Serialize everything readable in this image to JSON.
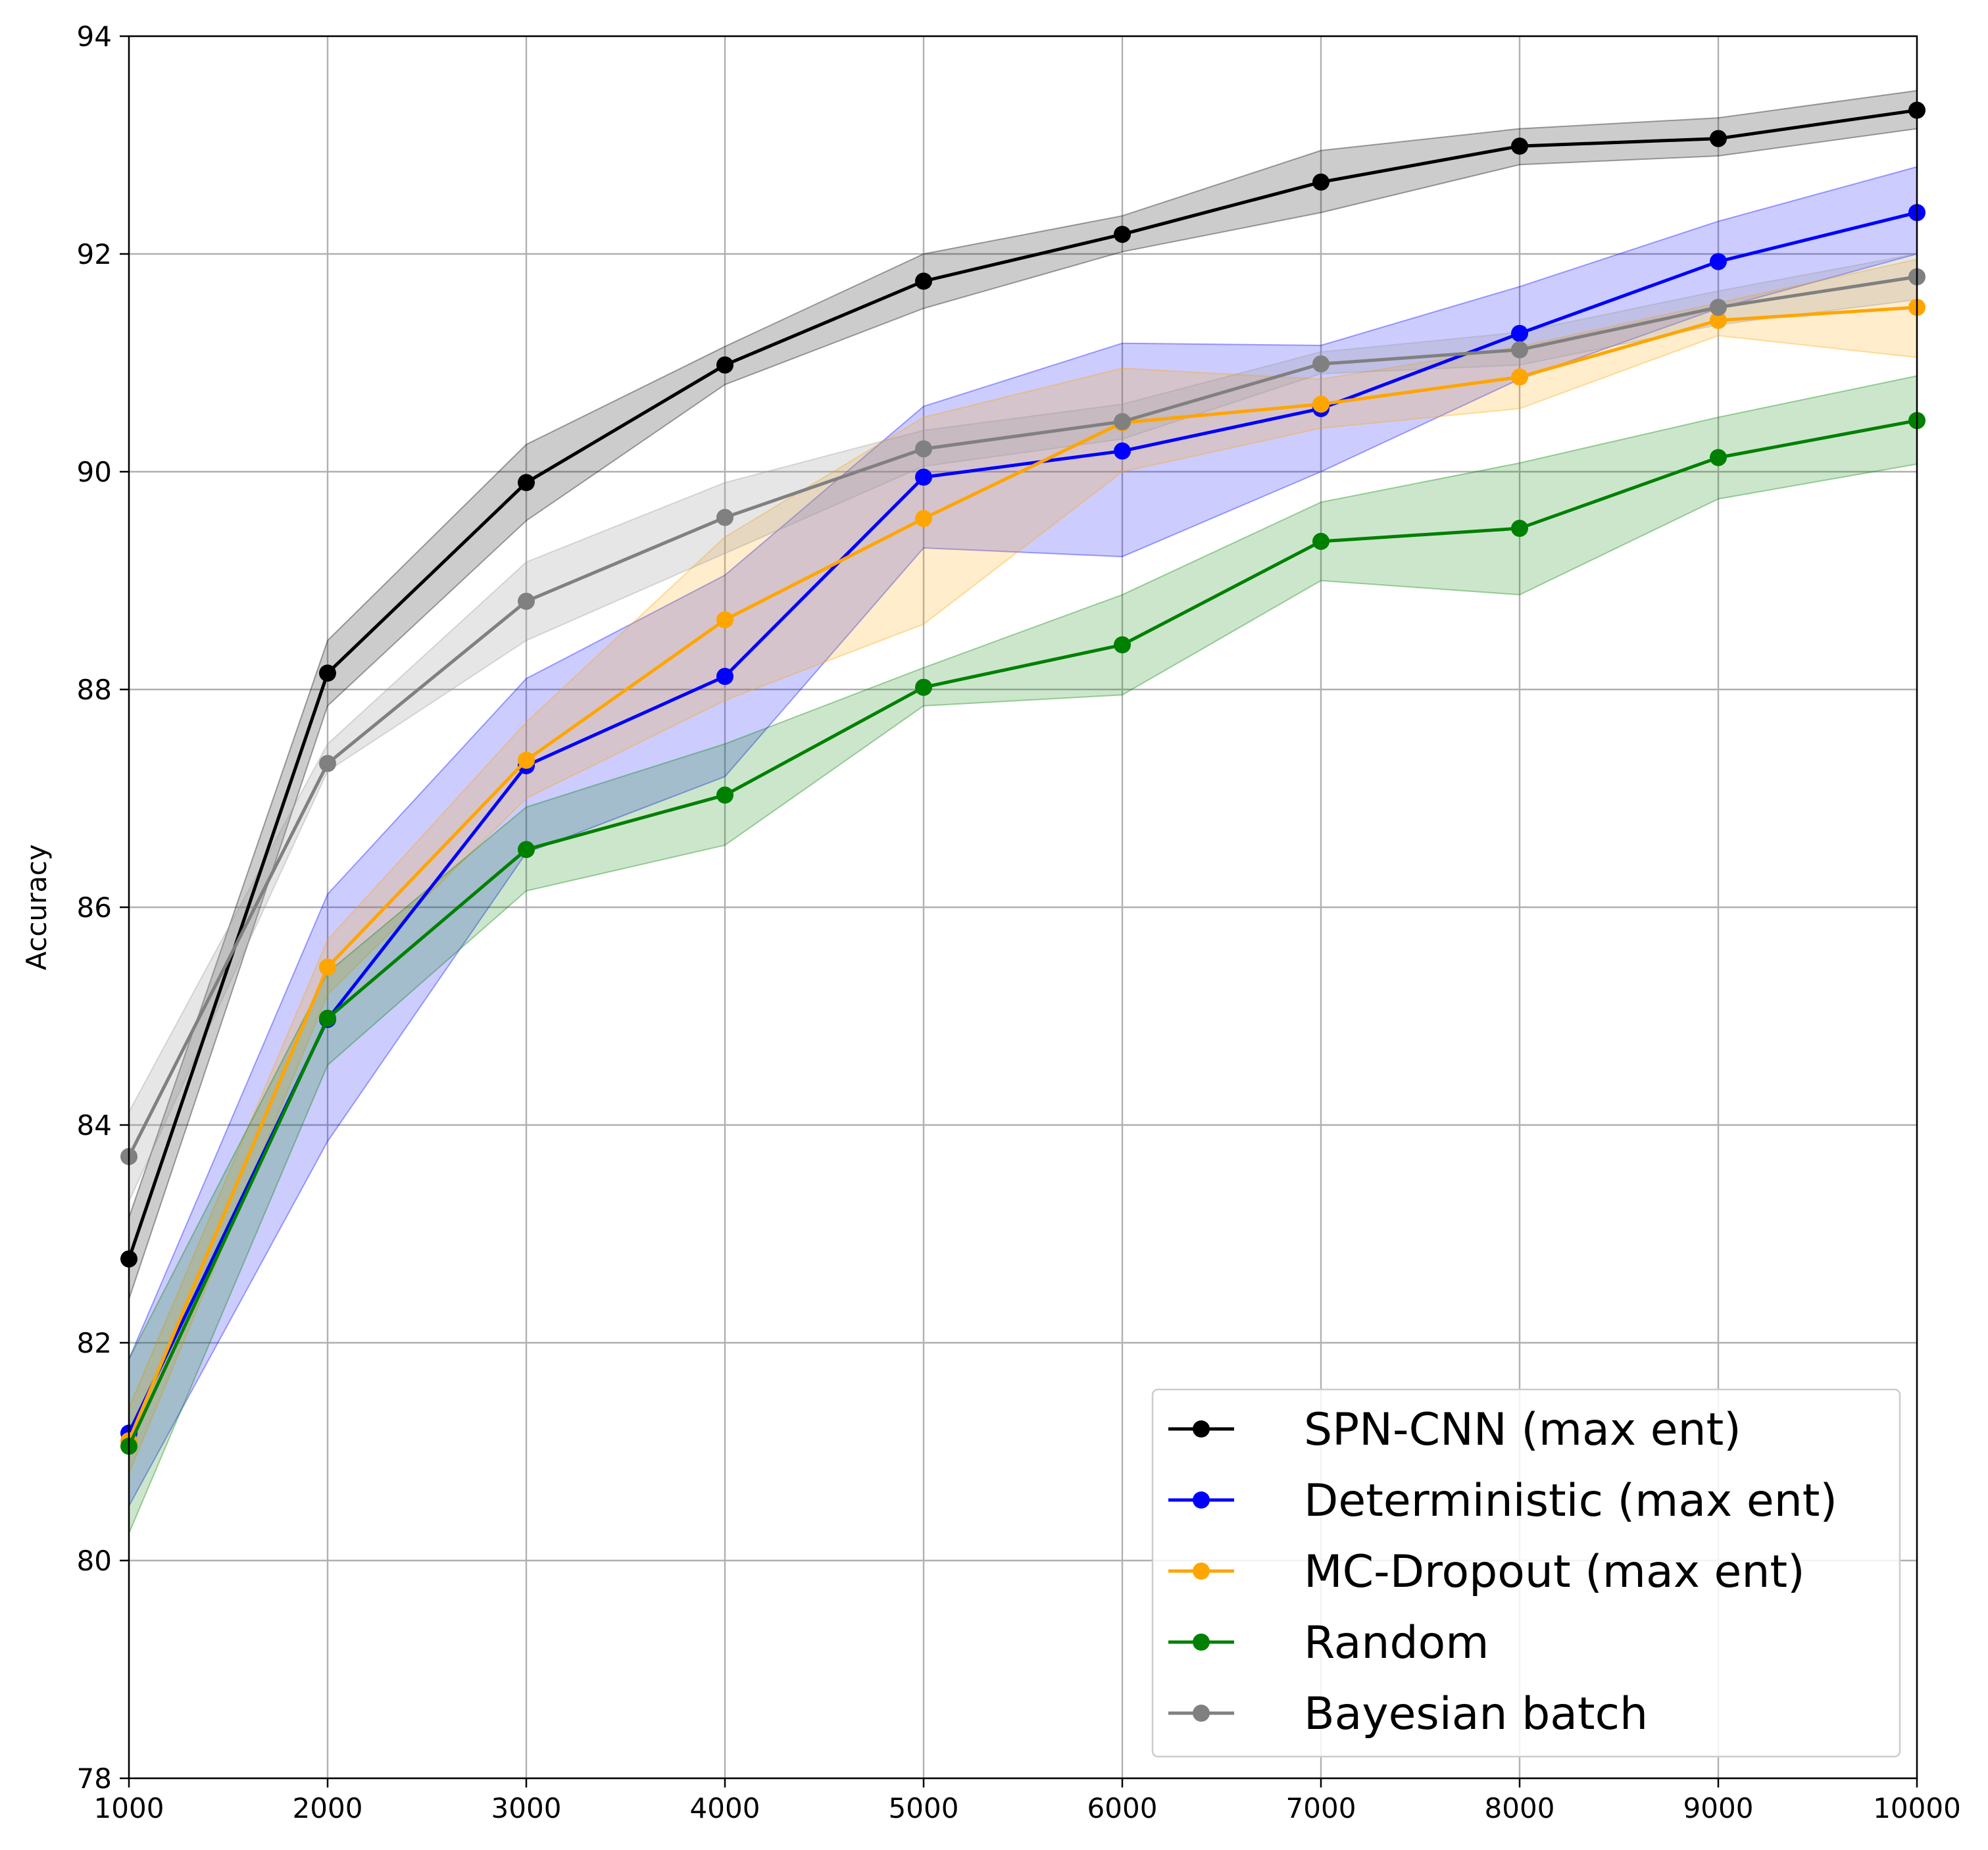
{
  "chart_data": {
    "type": "line",
    "title": "",
    "xlabel": "",
    "ylabel": "Accuracy",
    "xlim": [
      1000,
      10000
    ],
    "ylim": [
      78,
      94
    ],
    "xticks": [
      1000,
      2000,
      3000,
      4000,
      5000,
      6000,
      7000,
      8000,
      9000,
      10000
    ],
    "yticks": [
      78,
      80,
      82,
      84,
      86,
      88,
      90,
      92,
      94
    ],
    "grid": true,
    "legend_position": "bottom-right",
    "x": [
      1000,
      2000,
      3000,
      4000,
      5000,
      6000,
      7000,
      8000,
      9000,
      10000
    ],
    "series": [
      {
        "name": "SPN-CNN (max ent)",
        "color": "#000000",
        "band_color": "#000000",
        "values": [
          82.77,
          88.15,
          89.9,
          90.98,
          91.75,
          92.18,
          92.66,
          92.99,
          93.06,
          93.32
        ],
        "band_lower": [
          82.4,
          87.85,
          89.55,
          90.8,
          91.5,
          92.02,
          92.38,
          92.82,
          92.9,
          93.15
        ],
        "band_upper": [
          83.15,
          88.45,
          90.25,
          91.15,
          92.0,
          92.35,
          92.95,
          93.15,
          93.25,
          93.5
        ]
      },
      {
        "name": "Deterministic (max ent)",
        "color": "#0000ff",
        "band_color": "#0000ff",
        "values": [
          81.17,
          84.97,
          87.3,
          88.12,
          89.95,
          90.19,
          90.58,
          91.27,
          91.93,
          92.38
        ],
        "band_lower": [
          80.5,
          83.85,
          86.5,
          87.2,
          89.3,
          89.22,
          90.0,
          90.85,
          91.5,
          92.0
        ],
        "band_upper": [
          81.85,
          86.12,
          88.1,
          89.05,
          90.6,
          91.18,
          91.16,
          91.7,
          92.3,
          92.8
        ]
      },
      {
        "name": "MC-Dropout (max ent)",
        "color": "#ffa500",
        "band_color": "#ffa500",
        "values": [
          81.1,
          85.45,
          87.35,
          88.64,
          89.57,
          90.45,
          90.62,
          90.87,
          91.39,
          91.51
        ],
        "band_lower": [
          80.8,
          85.2,
          87.0,
          87.9,
          88.6,
          90.0,
          90.4,
          90.58,
          91.25,
          91.05
        ],
        "band_upper": [
          81.4,
          85.7,
          87.7,
          89.4,
          90.5,
          90.95,
          90.85,
          91.15,
          91.55,
          91.95
        ]
      },
      {
        "name": "Random",
        "color": "#008000",
        "band_color": "#008000",
        "values": [
          81.05,
          84.98,
          86.53,
          87.03,
          88.02,
          88.41,
          89.36,
          89.48,
          90.13,
          90.47
        ],
        "band_lower": [
          80.25,
          84.55,
          86.15,
          86.57,
          87.85,
          87.95,
          89.0,
          88.87,
          89.75,
          90.07
        ],
        "band_upper": [
          81.85,
          85.4,
          86.92,
          87.5,
          88.2,
          88.87,
          89.72,
          90.08,
          90.5,
          90.88
        ]
      },
      {
        "name": "Bayesian batch",
        "color": "#808080",
        "band_color": "#9a9a9a",
        "values": [
          83.71,
          87.32,
          88.81,
          89.58,
          90.21,
          90.46,
          90.99,
          91.12,
          91.51,
          91.79
        ],
        "band_lower": [
          83.3,
          87.25,
          88.45,
          89.25,
          90.05,
          90.3,
          90.9,
          90.98,
          91.35,
          91.58
        ],
        "band_upper": [
          84.12,
          87.5,
          89.17,
          89.9,
          90.38,
          90.62,
          91.1,
          91.28,
          91.66,
          92.0
        ]
      }
    ]
  }
}
